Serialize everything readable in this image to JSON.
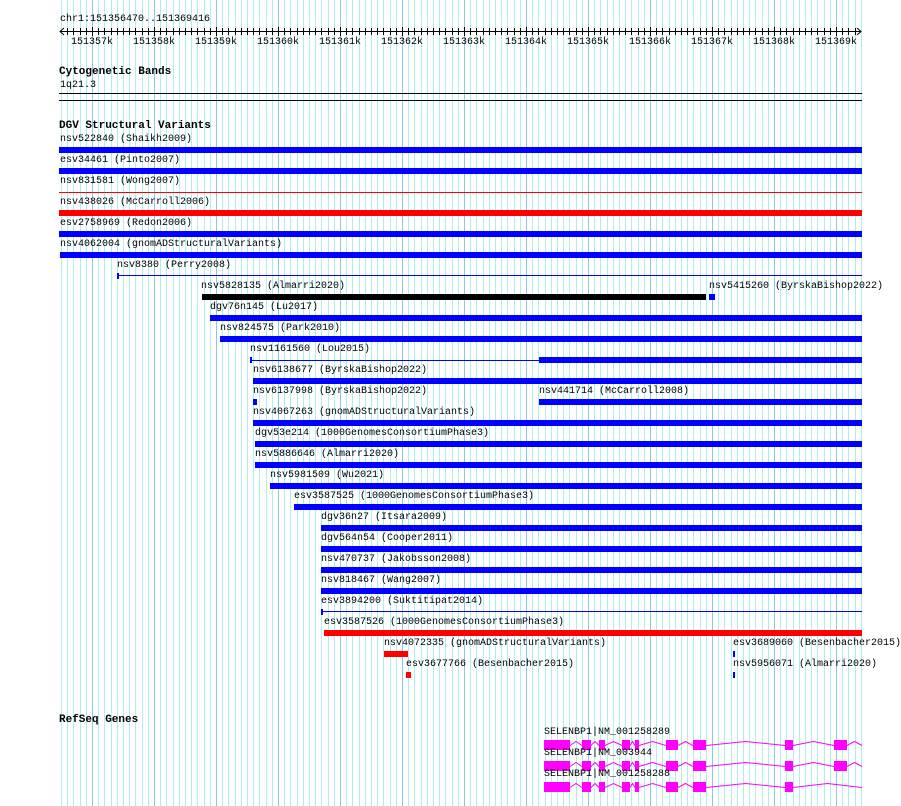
{
  "ruler": {
    "location": "chr1:151356470..151369416",
    "ticks": [
      "151357k",
      "151358k",
      "151359k",
      "151360k",
      "151361k",
      "151362k",
      "151363k",
      "151364k",
      "151365k",
      "151366k",
      "151367k",
      "151368k",
      "151369k"
    ]
  },
  "cytoband": {
    "title": "Cytogenetic Bands",
    "band": "1q21.3"
  },
  "dgv": {
    "title": "DGV Structural Variants",
    "features": [
      "nsv522840 (Shaikh2009)",
      "esv34461 (Pinto2007)",
      "nsv831581 (Wong2007)",
      "nsv438026 (McCarroll2006)",
      "esv2758969 (Redon2006)",
      "nsv4062004 (gnomADStructuralVariants)",
      "nsv8380 (Perry2008)",
      "nsv5828135 (Almarri2020)",
      "nsv5415260 (ByrskaBishop2022)",
      "dgv76n145 (Lu2017)",
      "nsv824575 (Park2010)",
      "nsv1161560 (Lou2015)",
      "nsv6138677 (ByrskaBishop2022)",
      "nsv6137998 (ByrskaBishop2022)",
      "nsv441714 (McCarroll2008)",
      "nsv4067263 (gnomADStructuralVariants)",
      "dgv53e214 (1000GenomesConsortiumPhase3)",
      "nsv5886646 (Almarri2020)",
      "nsv5981509 (Wu2021)",
      "esv3587525 (1000GenomesConsortiumPhase3)",
      "dgv36n27 (Itsara2009)",
      "dgv564n54 (Cooper2011)",
      "nsv470737 (Jakobsson2008)",
      "nsv818467 (Wang2007)",
      "esv3894200 (Suktitipat2014)",
      "esv3587526 (1000GenomesConsortiumPhase3)",
      "nsv4072335 (gnomADStructuralVariants)",
      "esv3689060 (Besenbacher2015)",
      "esv3677766 (Besenbacher2015)",
      "nsv5956071 (Almarri2020)"
    ]
  },
  "genes": {
    "title": "RefSeq Genes",
    "transcripts": [
      "SELENBP1|NM_001258289",
      "SELENBP1|NM_003944",
      "SELENBP1|NM_001258288"
    ]
  },
  "colors": {
    "blue": "#0000ff",
    "red": "#ff0000",
    "black": "#000000",
    "gene": "#ff00ff",
    "grid_minor": "#aeeef0",
    "grid_major": "#8cc6ec"
  }
}
